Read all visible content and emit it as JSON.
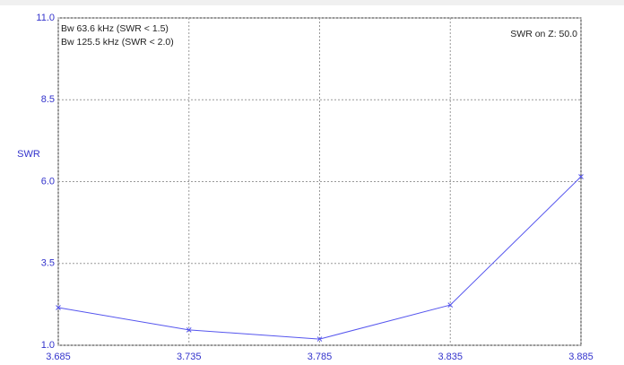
{
  "chart_data": {
    "type": "line",
    "ylabel": "SWR",
    "annotations": [
      "Bw 63.6 kHz (SWR < 1.5)",
      "Bw 125.5 kHz (SWR < 2.0)",
      "SWR on Z: 50.0"
    ],
    "x": [
      3.685,
      3.735,
      3.785,
      3.835,
      3.885
    ],
    "series": [
      {
        "color": "#5555ee",
        "values": [
          2.15,
          1.47,
          1.19,
          2.23,
          6.15
        ]
      }
    ],
    "xlim": [
      3.685,
      3.885
    ],
    "xticks": [
      3.685,
      3.735,
      3.785,
      3.835,
      3.885
    ],
    "ylim": [
      1,
      11
    ],
    "yticks": [
      {
        "value": 1,
        "label": "1.0"
      },
      3.5,
      {
        "value": 6,
        "label": "6.0"
      },
      8.5,
      {
        "value": 11,
        "label": "11.0"
      }
    ],
    "grid": true
  }
}
